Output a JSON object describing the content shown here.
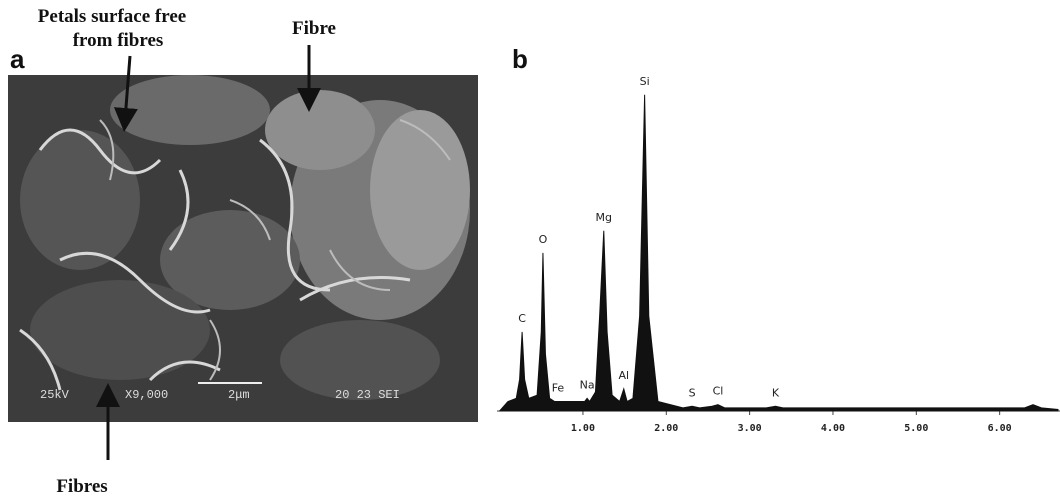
{
  "panel_a": {
    "label": "a",
    "top_left_callout": [
      "Petals surface free",
      "from fibres"
    ],
    "top_right_callout": "Fibre",
    "bottom_callout": "Fibres",
    "micrograph_info": [
      "25kV",
      "X9,000",
      "2μm",
      "20 23 SEI"
    ]
  },
  "chart_data": {
    "type": "area",
    "panel_label": "b",
    "x": [
      0.0,
      0.1,
      0.2,
      0.24,
      0.27,
      0.3,
      0.35,
      0.45,
      0.5,
      0.52,
      0.55,
      0.6,
      0.66,
      0.7,
      0.74,
      0.8,
      0.95,
      1.02,
      1.05,
      1.08,
      1.15,
      1.2,
      1.25,
      1.29,
      1.35,
      1.44,
      1.49,
      1.53,
      1.6,
      1.68,
      1.74,
      1.79,
      1.9,
      2.2,
      2.31,
      2.4,
      2.55,
      2.62,
      2.7,
      3.2,
      3.31,
      3.4,
      4.5,
      6.3,
      6.4,
      6.5,
      6.7
    ],
    "series": [
      {
        "color": "#111111",
        "values": [
          0,
          3,
          4,
          10,
          25,
          10,
          4,
          5,
          25,
          50,
          18,
          4,
          3,
          3,
          3,
          3,
          3,
          3,
          4,
          3,
          6,
          30,
          57,
          25,
          5,
          3,
          7,
          3,
          4,
          30,
          100,
          30,
          3,
          1,
          1.5,
          1,
          1.5,
          2,
          1,
          1,
          1.5,
          1,
          1,
          1,
          2,
          1,
          0.5
        ]
      }
    ],
    "peaks": [
      {
        "label": "C",
        "x": 0.27,
        "value": 25
      },
      {
        "label": "O",
        "x": 0.52,
        "value": 50
      },
      {
        "label": "Fe",
        "x": 0.7,
        "value": 3
      },
      {
        "label": "Na",
        "x": 1.05,
        "value": 4
      },
      {
        "label": "Mg",
        "x": 1.25,
        "value": 57
      },
      {
        "label": "Al",
        "x": 1.49,
        "value": 7
      },
      {
        "label": "Si",
        "x": 1.74,
        "value": 100
      },
      {
        "label": "S",
        "x": 2.31,
        "value": 1.5
      },
      {
        "label": "Cl",
        "x": 2.62,
        "value": 2
      },
      {
        "label": "K",
        "x": 3.31,
        "value": 1.5
      }
    ],
    "xlim": [
      0,
      6.7
    ],
    "ylim": [
      0,
      105
    ],
    "xticks": [
      {
        "value": 1,
        "label": "1.00"
      },
      {
        "value": 2,
        "label": "2.00"
      },
      {
        "value": 3,
        "label": "3.00"
      },
      {
        "value": 4,
        "label": "4.00"
      },
      {
        "value": 5,
        "label": "5.00"
      },
      {
        "value": 6,
        "label": "6.00"
      }
    ]
  }
}
